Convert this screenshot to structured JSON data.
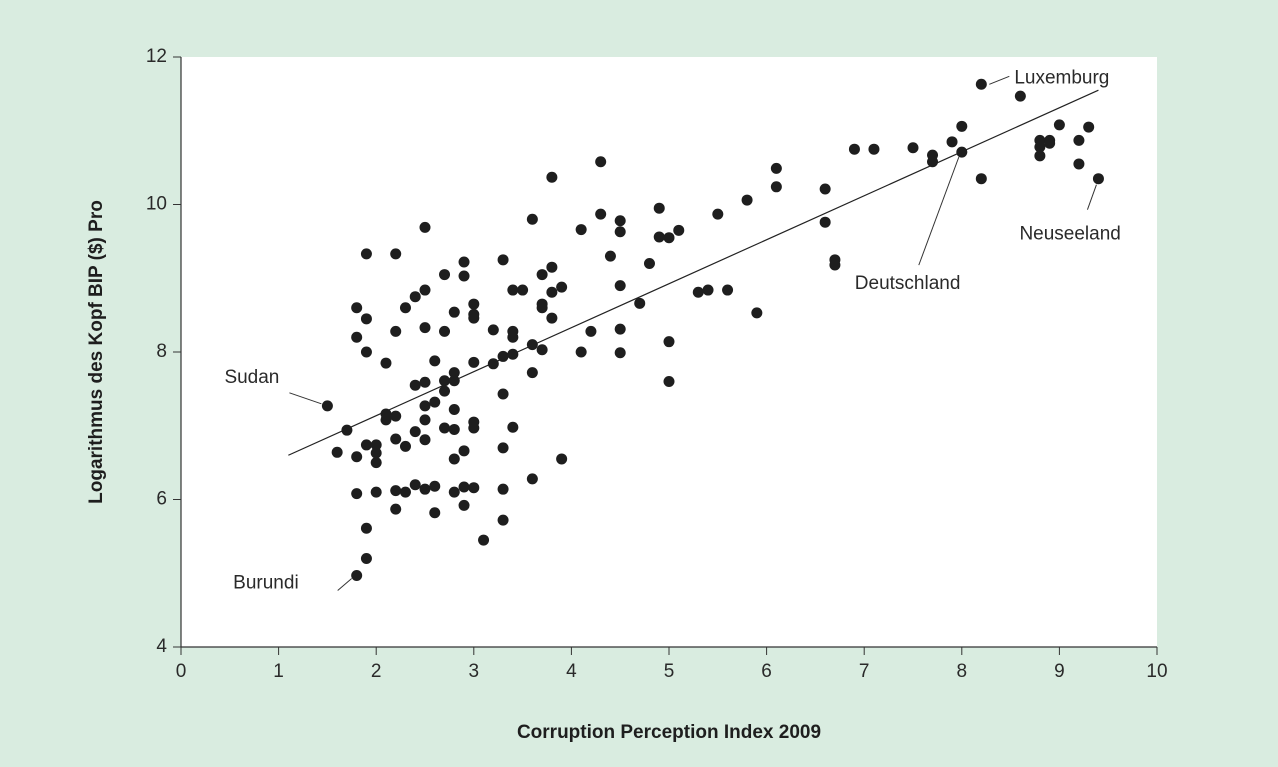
{
  "chart_data": {
    "type": "scatter",
    "x_label": "Corruption Perception Index 2009",
    "y_label": "Logarithmus des Kopf BIP ($) Pro",
    "xlim": [
      0,
      10
    ],
    "xticks": [
      0,
      1,
      2,
      3,
      4,
      5,
      6,
      7,
      8,
      9,
      10
    ],
    "ylim": [
      4,
      12
    ],
    "yticks": [
      4,
      6,
      8,
      10,
      12
    ],
    "color": "#1e1e1e",
    "x": [
      1.5,
      1.7,
      1.6,
      1.8,
      1.8,
      1.8,
      1.8,
      1.8,
      1.9,
      1.9,
      1.9,
      1.9,
      1.9,
      1.9,
      2.0,
      2.0,
      2.0,
      2.0,
      2.1,
      2.1,
      2.1,
      2.2,
      2.2,
      2.2,
      2.2,
      2.2,
      2.2,
      2.3,
      2.3,
      2.3,
      2.4,
      2.4,
      2.4,
      2.4,
      2.5,
      2.5,
      2.5,
      2.5,
      2.5,
      2.5,
      2.5,
      2.5,
      2.6,
      2.6,
      2.6,
      2.6,
      2.7,
      2.7,
      2.7,
      2.7,
      2.7,
      2.8,
      2.8,
      2.8,
      2.8,
      2.8,
      2.8,
      2.8,
      2.9,
      2.9,
      2.9,
      2.9,
      2.9,
      3.0,
      3.0,
      3.0,
      3.0,
      3.0,
      3.0,
      3.0,
      3.1,
      3.2,
      3.2,
      3.3,
      3.3,
      3.3,
      3.3,
      3.3,
      3.3,
      3.4,
      3.4,
      3.4,
      3.4,
      3.4,
      3.5,
      3.6,
      3.6,
      3.6,
      3.6,
      3.7,
      3.7,
      3.7,
      3.7,
      3.8,
      3.8,
      3.8,
      3.8,
      3.9,
      3.9,
      4.1,
      4.1,
      4.2,
      4.3,
      4.3,
      4.4,
      4.5,
      4.5,
      4.5,
      4.5,
      4.5,
      4.7,
      4.8,
      4.9,
      4.9,
      5.0,
      5.0,
      5.0,
      5.1,
      5.3,
      5.4,
      5.5,
      5.6,
      5.8,
      5.9,
      6.1,
      6.1,
      6.6,
      6.6,
      6.7,
      6.7,
      6.9,
      7.1,
      7.5,
      7.7,
      7.7,
      7.9,
      8.0,
      8.0,
      8.2,
      8.2,
      8.6,
      8.8,
      8.8,
      8.8,
      8.9,
      8.9,
      9.0,
      9.2,
      9.2,
      9.3,
      9.4
    ],
    "values": [
      7.27,
      6.94,
      6.64,
      8.6,
      8.2,
      6.58,
      6.08,
      4.97,
      9.33,
      8.45,
      8.0,
      6.74,
      5.61,
      5.2,
      6.74,
      6.63,
      6.5,
      6.1,
      7.85,
      7.16,
      7.08,
      9.33,
      8.28,
      7.13,
      6.82,
      6.12,
      5.87,
      8.6,
      6.72,
      6.1,
      8.75,
      7.55,
      6.92,
      6.2,
      9.69,
      8.84,
      8.33,
      7.59,
      7.27,
      7.08,
      6.81,
      6.14,
      7.88,
      7.32,
      6.18,
      5.82,
      9.05,
      8.28,
      7.61,
      7.47,
      6.97,
      8.54,
      7.72,
      7.61,
      7.22,
      6.95,
      6.55,
      6.1,
      9.22,
      9.03,
      6.66,
      6.17,
      5.92,
      8.65,
      8.51,
      8.46,
      7.86,
      7.05,
      6.97,
      6.16,
      5.45,
      8.3,
      7.84,
      9.25,
      7.94,
      7.43,
      6.7,
      6.14,
      5.72,
      8.84,
      8.28,
      8.2,
      7.97,
      6.98,
      8.84,
      9.8,
      8.1,
      7.72,
      6.28,
      9.05,
      8.65,
      8.6,
      8.03,
      10.37,
      9.15,
      8.81,
      8.46,
      8.88,
      6.55,
      9.66,
      8.0,
      8.28,
      10.58,
      9.87,
      9.3,
      9.78,
      9.63,
      8.9,
      8.31,
      7.99,
      8.66,
      9.2,
      9.95,
      9.56,
      9.55,
      8.14,
      7.6,
      9.65,
      8.81,
      8.84,
      9.87,
      8.84,
      10.06,
      8.53,
      10.49,
      10.24,
      10.21,
      9.76,
      9.25,
      9.18,
      10.75,
      10.75,
      10.77,
      10.67,
      10.58,
      10.85,
      11.06,
      10.71,
      10.35,
      11.63,
      11.47,
      10.87,
      10.78,
      10.66,
      10.87,
      10.83,
      11.08,
      10.87,
      10.55,
      11.05,
      10.35
    ],
    "trend_line": {
      "x": [
        1.1,
        9.4
      ],
      "y": [
        6.6,
        11.55
      ]
    },
    "annotations": [
      {
        "text": "Luxemburg",
        "x": 8.2,
        "y": 11.63
      },
      {
        "text": "Sudan",
        "x": 1.5,
        "y": 7.27
      },
      {
        "text": "Burundi",
        "x": 1.8,
        "y": 4.97
      },
      {
        "text": "Deutschland",
        "x": 8.0,
        "y": 10.71
      },
      {
        "text": "Neuseeland",
        "x": 9.4,
        "y": 10.35
      }
    ]
  }
}
